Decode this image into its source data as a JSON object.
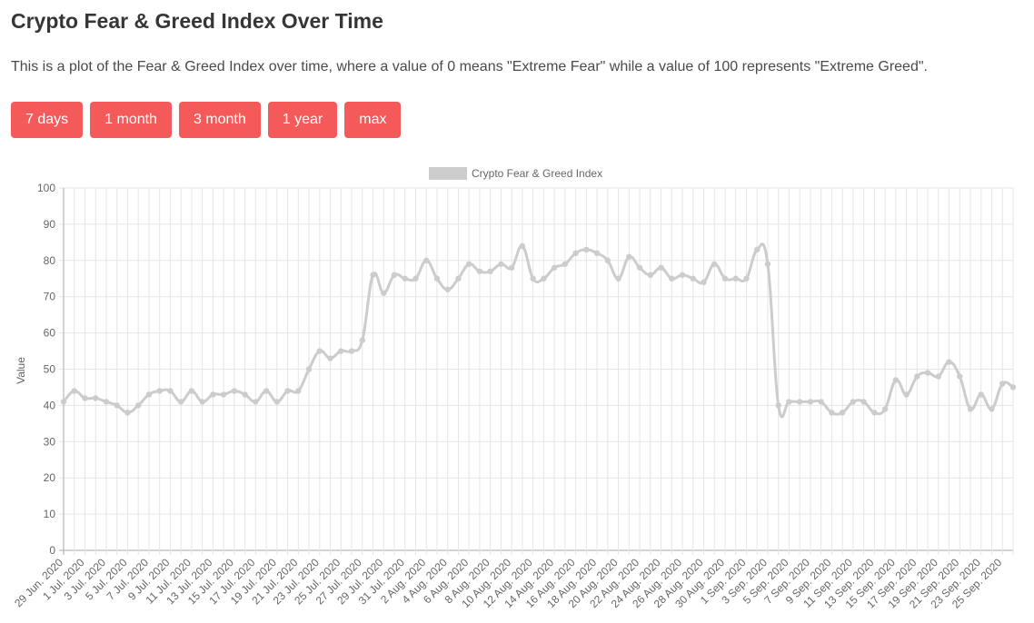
{
  "header": {
    "title": "Crypto Fear & Greed Index Over Time",
    "description": "This is a plot of the Fear & Greed Index over time, where a value of 0 means \"Extreme Fear\" while a value of 100 represents \"Extreme Greed\"."
  },
  "range_buttons": [
    {
      "label": "7 days"
    },
    {
      "label": "1 month"
    },
    {
      "label": "3 month"
    },
    {
      "label": "1 year"
    },
    {
      "label": "max"
    }
  ],
  "colors": {
    "button": "#f55a5a",
    "series": "#cccccc",
    "grid": "#e5e5e5"
  },
  "chart_data": {
    "type": "line",
    "title": "",
    "xlabel": "",
    "ylabel": "Value",
    "ylim": [
      0,
      100
    ],
    "yticks": [
      0,
      10,
      20,
      30,
      40,
      50,
      60,
      70,
      80,
      90,
      100
    ],
    "grid": true,
    "legend_position": "top-center",
    "x_tick_labels": [
      "29 Jun. 2020",
      "1 Jul. 2020",
      "3 Jul. 2020",
      "5 Jul. 2020",
      "7 Jul. 2020",
      "9 Jul. 2020",
      "11 Jul. 2020",
      "13 Jul. 2020",
      "15 Jul. 2020",
      "17 Jul. 2020",
      "19 Jul. 2020",
      "21 Jul. 2020",
      "23 Jul. 2020",
      "25 Jul. 2020",
      "27 Jul. 2020",
      "29 Jul. 2020",
      "31 Jul. 2020",
      "2 Aug. 2020",
      "4 Aug. 2020",
      "6 Aug. 2020",
      "8 Aug. 2020",
      "10 Aug. 2020",
      "12 Aug. 2020",
      "14 Aug. 2020",
      "16 Aug. 2020",
      "18 Aug. 2020",
      "20 Aug. 2020",
      "22 Aug. 2020",
      "24 Aug. 2020",
      "26 Aug. 2020",
      "28 Aug. 2020",
      "30 Aug. 2020",
      "1 Sep. 2020",
      "3 Sep. 2020",
      "5 Sep. 2020",
      "7 Sep. 2020",
      "9 Sep. 2020",
      "11 Sep. 2020",
      "13 Sep. 2020",
      "15 Sep. 2020",
      "17 Sep. 2020",
      "19 Sep. 2020",
      "21 Sep. 2020",
      "23 Sep. 2020",
      "25 Sep. 2020"
    ],
    "series": [
      {
        "name": "Crypto Fear & Greed Index",
        "color": "#cccccc",
        "values": [
          41,
          44,
          42,
          42,
          41,
          40,
          38,
          40,
          43,
          44,
          44,
          41,
          44,
          41,
          43,
          43,
          44,
          43,
          41,
          44,
          41,
          44,
          44,
          50,
          55,
          53,
          55,
          55,
          58,
          76,
          71,
          76,
          75,
          75,
          80,
          75,
          72,
          75,
          79,
          77,
          77,
          79,
          78,
          84,
          75,
          75,
          78,
          79,
          82,
          83,
          82,
          80,
          75,
          81,
          78,
          76,
          78,
          75,
          76,
          75,
          74,
          79,
          75,
          75,
          75,
          83,
          79,
          40,
          41,
          41,
          41,
          41,
          38,
          38,
          41,
          41,
          38,
          39,
          47,
          43,
          48,
          49,
          48,
          52,
          48,
          39,
          43,
          39,
          46,
          45
        ]
      }
    ]
  }
}
